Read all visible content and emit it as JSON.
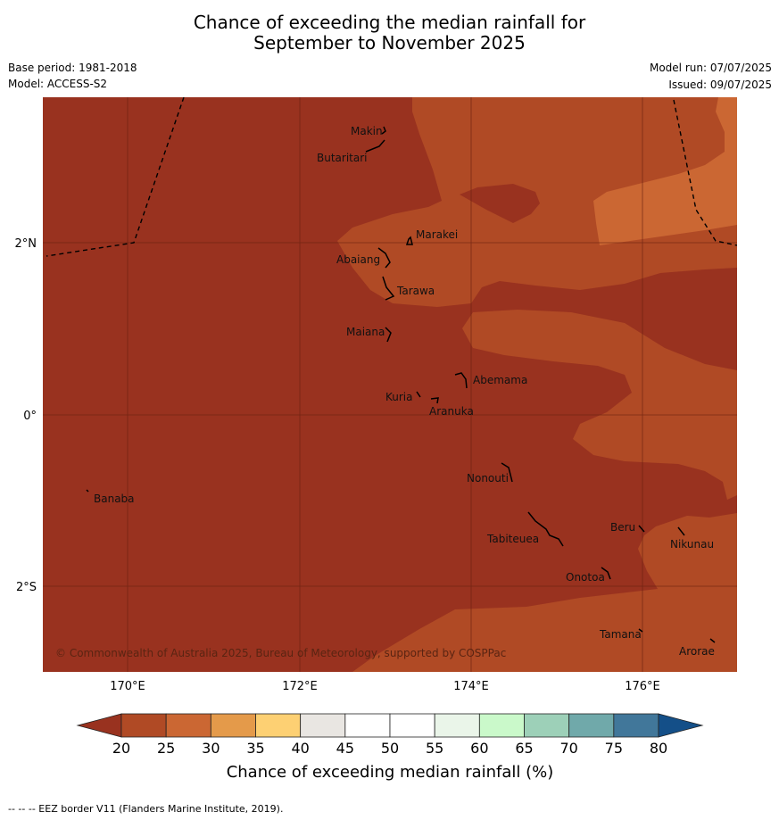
{
  "title_line1": "Chance of exceeding the median rainfall for",
  "title_line2": "September to November 2025",
  "base_period": "Base period: 1981-2018",
  "model": "Model: ACCESS-S2",
  "model_run": "Model run: 07/07/2025",
  "issued": "Issued: 09/07/2025",
  "copyright": "© Commonwealth of Australia 2025, Bureau of Meteorology, supported by COSPPac",
  "lat_labels": [
    "2°N",
    "0°",
    "2°S"
  ],
  "lon_labels": [
    "170°E",
    "172°E",
    "174°E",
    "176°E"
  ],
  "islands": [
    "Makin",
    "Butaritari",
    "Marakei",
    "Abaiang",
    "Tarawa",
    "Maiana",
    "Abemama",
    "Kuria",
    "Aranuka",
    "Banaba",
    "Nonouti",
    "Beru",
    "Nikunau",
    "Tabiteuea",
    "Onotoa",
    "Tamana",
    "Arorae"
  ],
  "colorbar": {
    "ticks": [
      "20",
      "25",
      "30",
      "35",
      "40",
      "45",
      "50",
      "55",
      "60",
      "65",
      "70",
      "75",
      "80"
    ],
    "colors": [
      "#b04a25",
      "#cb6733",
      "#e49a4a",
      "#fdd073",
      "#e9e6e2",
      "#ffffff",
      "#ffffff",
      "#eaf5e9",
      "#caf9ca",
      "#9dd0b8",
      "#70a9aa",
      "#41779a"
    ],
    "under_color": "#99321f",
    "over_color": "#144f88",
    "label": "Chance of exceeding median rainfall (%)"
  },
  "legend_note": "--  --  -- EEZ border V11 (Flanders Marine Institute, 2019).",
  "map_colors": {
    "below_20": "#99321f",
    "range_20_25": "#b04a25",
    "range_25_30": "#cb6733"
  }
}
